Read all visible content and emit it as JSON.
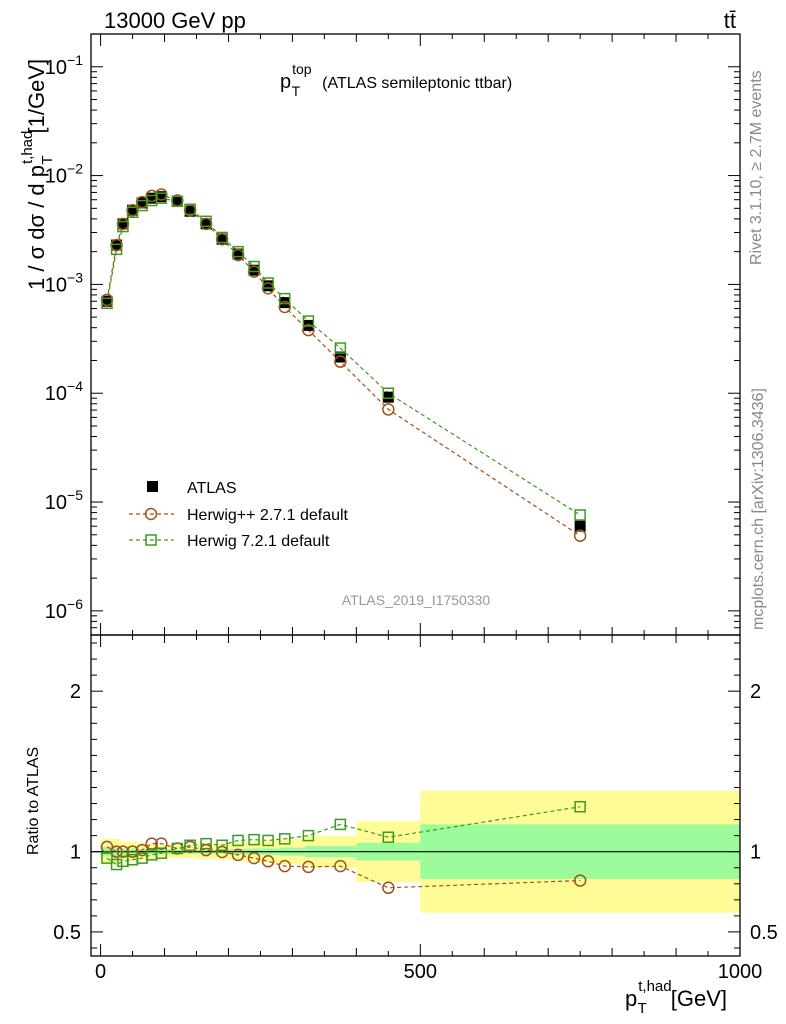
{
  "header": {
    "left": "13000 GeV pp",
    "right": "tt̄"
  },
  "side_labels": {
    "rivet": "Rivet 3.1.10, ≥ 2.7M events",
    "mcplots": "mcplots.cern.ch [arXiv:1306.3436]"
  },
  "watermark": "ATLAS_2019_I1750330",
  "chart_data": [
    {
      "type": "scatter",
      "panel": "main",
      "title": "p_T^top (ATLAS semileptonic ttbar)",
      "title_parts": {
        "p": "p",
        "sup": "top",
        "sub": "T",
        "rest": "(ATLAS semileptonic ttbar)"
      },
      "ylabel": "1 / σ dσ / d p_T^{t,had} [1/GeV]",
      "ylabel_parts": {
        "main": "1 / σ dσ / d p",
        "sup": "t,had",
        "sub": "T",
        "unit": "[1/GeV]"
      },
      "yscale": "log",
      "ylim": [
        6e-07,
        0.2
      ],
      "xlim": [
        -15,
        1000
      ],
      "ytick_labels": [
        "10^-6",
        "10^-5",
        "10^-4",
        "10^-3",
        "10^-2",
        "10^-1"
      ],
      "legend_position": "lower-left",
      "x": [
        10,
        25,
        35,
        50,
        65,
        80,
        95,
        120,
        140,
        165,
        190,
        215,
        240,
        262,
        288,
        325,
        375,
        450,
        750
      ],
      "series": [
        {
          "name": "ATLAS",
          "color": "#000000",
          "marker": "filled-square",
          "values": [
            0.0007,
            0.0023,
            0.0036,
            0.0048,
            0.0056,
            0.0062,
            0.0064,
            0.0058,
            0.0047,
            0.0036,
            0.0026,
            0.0019,
            0.00135,
            0.00097,
            0.00068,
            0.00042,
            0.000215,
            9.2e-05,
            6e-06
          ]
        },
        {
          "name": "Herwig++ 2.7.1 default",
          "color": "#a0521b",
          "marker": "open-circle",
          "values": [
            0.00072,
            0.0023,
            0.0036,
            0.0048,
            0.0057,
            0.0065,
            0.0067,
            0.0059,
            0.0048,
            0.0036,
            0.0026,
            0.00186,
            0.00131,
            0.00092,
            0.00062,
            0.00038,
            0.000195,
            7.1e-05,
            4.9e-06
          ]
        },
        {
          "name": "Herwig 7.2.1 default",
          "color": "#3d9a1e",
          "marker": "open-square",
          "values": [
            0.00067,
            0.0021,
            0.0034,
            0.0046,
            0.0053,
            0.0059,
            0.0062,
            0.0058,
            0.0049,
            0.0038,
            0.0027,
            0.002,
            0.00146,
            0.00103,
            0.00074,
            0.00046,
            0.00026,
            0.0001,
            7.6e-06
          ]
        }
      ]
    },
    {
      "type": "scatter",
      "panel": "ratio",
      "ylabel": "Ratio to ATLAS",
      "xlabel": "p_T^{t,had} [GeV]",
      "xlabel_parts": {
        "main": "p",
        "sup": "t,had",
        "sub": "T",
        "unit": "[GeV]"
      },
      "ylim": [
        0.35,
        2.35
      ],
      "xlim": [
        -15,
        1000
      ],
      "yticks": [
        0.5,
        1,
        2
      ],
      "ytick_labels": [
        "0.5",
        "1",
        "2"
      ],
      "xticks": [
        0,
        500,
        1000
      ],
      "xtick_labels": [
        "0",
        "500",
        "1000"
      ],
      "x": [
        10,
        25,
        35,
        50,
        65,
        80,
        95,
        120,
        140,
        165,
        190,
        215,
        240,
        262,
        288,
        325,
        375,
        450,
        750
      ],
      "series": [
        {
          "name": "Herwig++ 2.7.1 default",
          "color": "#a0521b",
          "marker": "open-circle",
          "values": [
            1.03,
            1.0,
            1.0,
            1.0,
            1.01,
            1.05,
            1.05,
            1.02,
            1.03,
            1.01,
            0.998,
            0.98,
            0.96,
            0.94,
            0.91,
            0.905,
            0.91,
            0.775,
            0.82
          ]
        },
        {
          "name": "Herwig 7.2.1 default",
          "color": "#3d9a1e",
          "marker": "open-square",
          "values": [
            0.96,
            0.92,
            0.94,
            0.95,
            0.96,
            0.98,
            0.99,
            1.02,
            1.04,
            1.05,
            1.04,
            1.07,
            1.075,
            1.07,
            1.08,
            1.1,
            1.17,
            1.09,
            1.28
          ]
        }
      ],
      "uncertainty_bands": {
        "bin_edges": [
          0,
          30,
          60,
          90,
          120,
          150,
          180,
          210,
          240,
          280,
          320,
          400,
          500,
          1000
        ],
        "stat": {
          "color": "#9cfb9a",
          "half_width": [
            0.03,
            0.02,
            0.015,
            0.012,
            0.012,
            0.012,
            0.015,
            0.018,
            0.02,
            0.025,
            0.035,
            0.055,
            0.17
          ]
        },
        "total": {
          "color": "#fffc98",
          "half_width": [
            0.08,
            0.06,
            0.05,
            0.04,
            0.04,
            0.045,
            0.05,
            0.06,
            0.07,
            0.08,
            0.1,
            0.19,
            0.38
          ]
        }
      }
    }
  ]
}
